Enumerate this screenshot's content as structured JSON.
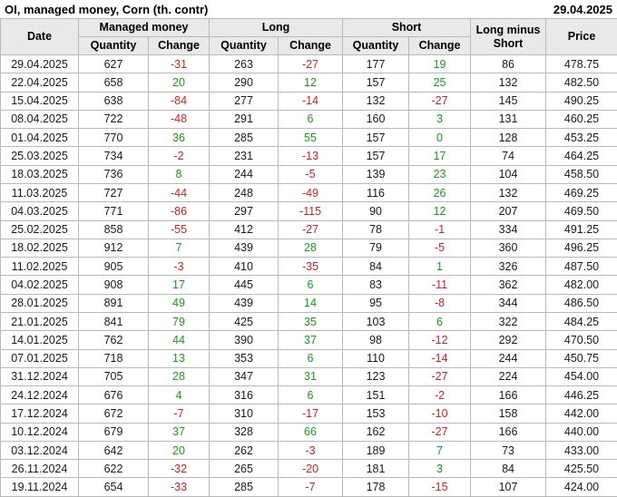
{
  "title": "OI, managed money, Corn (th. contr)",
  "report_date": "29.04.2025",
  "colors": {
    "positive": "#189b18",
    "negative": "#cc2222",
    "header_bg": "#e9e9e9",
    "border": "#b9b9b9"
  },
  "table": {
    "header": {
      "date": "Date",
      "groups": [
        {
          "label": "Managed money"
        },
        {
          "label": "Long"
        },
        {
          "label": "Short"
        }
      ],
      "sub_quantity": "Quantity",
      "sub_change": "Change",
      "long_minus_short": "Long minus Short",
      "price": "Price"
    },
    "rows": [
      [
        "29.04.2025",
        627,
        -31,
        263,
        -27,
        177,
        19,
        86,
        "478.75"
      ],
      [
        "22.04.2025",
        658,
        20,
        290,
        12,
        157,
        25,
        132,
        "482.50"
      ],
      [
        "15.04.2025",
        638,
        -84,
        277,
        -14,
        132,
        -27,
        145,
        "490.25"
      ],
      [
        "08.04.2025",
        722,
        -48,
        291,
        6,
        160,
        3,
        131,
        "460.25"
      ],
      [
        "01.04.2025",
        770,
        36,
        285,
        55,
        157,
        0,
        128,
        "453.25"
      ],
      [
        "25.03.2025",
        734,
        -2,
        231,
        -13,
        157,
        17,
        74,
        "464.25"
      ],
      [
        "18.03.2025",
        736,
        8,
        244,
        -5,
        139,
        23,
        104,
        "458.50"
      ],
      [
        "11.03.2025",
        727,
        -44,
        248,
        -49,
        116,
        26,
        132,
        "469.25"
      ],
      [
        "04.03.2025",
        771,
        -86,
        297,
        -115,
        90,
        12,
        207,
        "469.50"
      ],
      [
        "25.02.2025",
        858,
        -55,
        412,
        -27,
        78,
        -1,
        334,
        "491.25"
      ],
      [
        "18.02.2025",
        912,
        7,
        439,
        28,
        79,
        -5,
        360,
        "496.25"
      ],
      [
        "11.02.2025",
        905,
        -3,
        410,
        -35,
        84,
        1,
        326,
        "487.50"
      ],
      [
        "04.02.2025",
        908,
        17,
        445,
        6,
        83,
        -11,
        362,
        "482.00"
      ],
      [
        "28.01.2025",
        891,
        49,
        439,
        14,
        95,
        -8,
        344,
        "486.50"
      ],
      [
        "21.01.2025",
        841,
        79,
        425,
        35,
        103,
        6,
        322,
        "484.25"
      ],
      [
        "14.01.2025",
        762,
        44,
        390,
        37,
        98,
        -12,
        292,
        "470.50"
      ],
      [
        "07.01.2025",
        718,
        13,
        353,
        6,
        110,
        -14,
        244,
        "450.75"
      ],
      [
        "31.12.2024",
        705,
        28,
        347,
        31,
        123,
        -27,
        224,
        "454.00"
      ],
      [
        "24.12.2024",
        676,
        4,
        316,
        6,
        151,
        -2,
        166,
        "446.25"
      ],
      [
        "17.12.2024",
        672,
        -7,
        310,
        -17,
        153,
        -10,
        158,
        "442.00"
      ],
      [
        "10.12.2024",
        679,
        37,
        328,
        66,
        162,
        -27,
        166,
        "440.00"
      ],
      [
        "03.12.2024",
        642,
        20,
        262,
        -3,
        189,
        7,
        73,
        "433.00"
      ],
      [
        "26.11.2024",
        622,
        -32,
        265,
        -20,
        181,
        3,
        84,
        "425.50"
      ],
      [
        "19.11.2024",
        654,
        -33,
        285,
        -7,
        178,
        -15,
        107,
        "424.00"
      ]
    ]
  }
}
